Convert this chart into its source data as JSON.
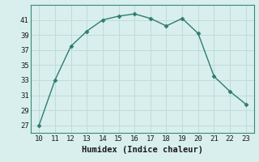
{
  "x": [
    10,
    11,
    12,
    13,
    14,
    15,
    16,
    17,
    18,
    19,
    20,
    21,
    22,
    23
  ],
  "y": [
    27,
    33,
    37.5,
    39.5,
    41,
    41.5,
    41.8,
    41.2,
    40.2,
    41.2,
    39.2,
    33.5,
    31.5,
    29.8
  ],
  "line_color": "#2e7d6e",
  "marker": "D",
  "marker_size": 2.5,
  "xlabel": "Humidex (Indice chaleur)",
  "xlim": [
    9.5,
    23.5
  ],
  "ylim": [
    26,
    43
  ],
  "yticks": [
    27,
    29,
    31,
    33,
    35,
    37,
    39,
    41
  ],
  "xticks": [
    10,
    11,
    12,
    13,
    14,
    15,
    16,
    17,
    18,
    19,
    20,
    21,
    22,
    23
  ],
  "bg_color": "#d8efed",
  "grid_color": "#c0dbd8",
  "tick_fontsize": 6.5,
  "xlabel_fontsize": 7.5,
  "line_width": 1.0
}
